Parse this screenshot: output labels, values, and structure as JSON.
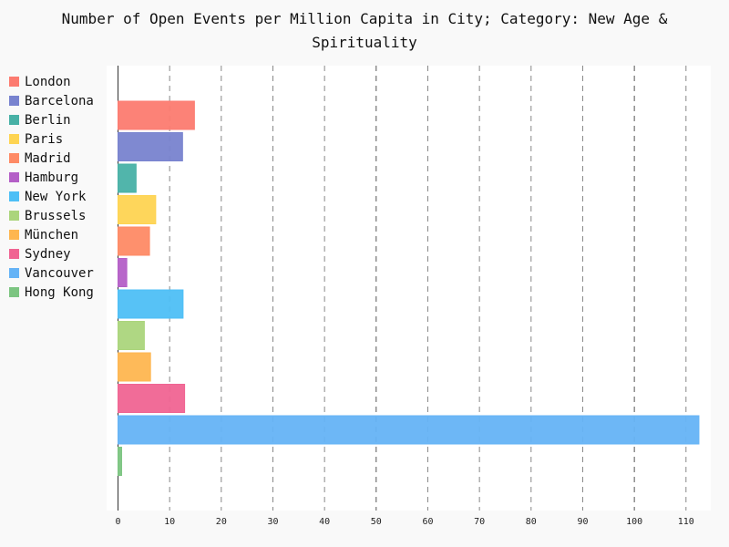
{
  "chart_data": {
    "type": "bar",
    "orientation": "horizontal",
    "title_lines": [
      "Number of Open Events per Million Capita in City; Category: New Age &",
      "Spirituality"
    ],
    "xlabel": "",
    "ylabel": "",
    "xlim": [
      0,
      112.8
    ],
    "x_ticks": [
      0,
      10,
      20,
      30,
      40,
      50,
      60,
      70,
      80,
      90,
      100,
      110
    ],
    "major_ticks": [
      50,
      100
    ],
    "grid": "vertical dashed",
    "legend_position": "left",
    "series": [
      {
        "name": "London",
        "value": 14.8,
        "color": "#fc7b70"
      },
      {
        "name": "Barcelona",
        "value": 12.5,
        "color": "#7883cf"
      },
      {
        "name": "Berlin",
        "value": 3.5,
        "color": "#48b1a6"
      },
      {
        "name": "Paris",
        "value": 7.3,
        "color": "#fed452"
      },
      {
        "name": "Madrid",
        "value": 6.1,
        "color": "#fe8a65"
      },
      {
        "name": "Hamburg",
        "value": 1.7,
        "color": "#b45fc7"
      },
      {
        "name": "New York",
        "value": 12.6,
        "color": "#4ebff6"
      },
      {
        "name": "Brussels",
        "value": 5.1,
        "color": "#abd57c"
      },
      {
        "name": "München",
        "value": 6.3,
        "color": "#feb650"
      },
      {
        "name": "Sydney",
        "value": 12.9,
        "color": "#f06492"
      },
      {
        "name": "Vancouver",
        "value": 112.5,
        "color": "#65b3f6"
      },
      {
        "name": "Hong Kong",
        "value": 0.7,
        "color": "#7cc581"
      }
    ]
  }
}
